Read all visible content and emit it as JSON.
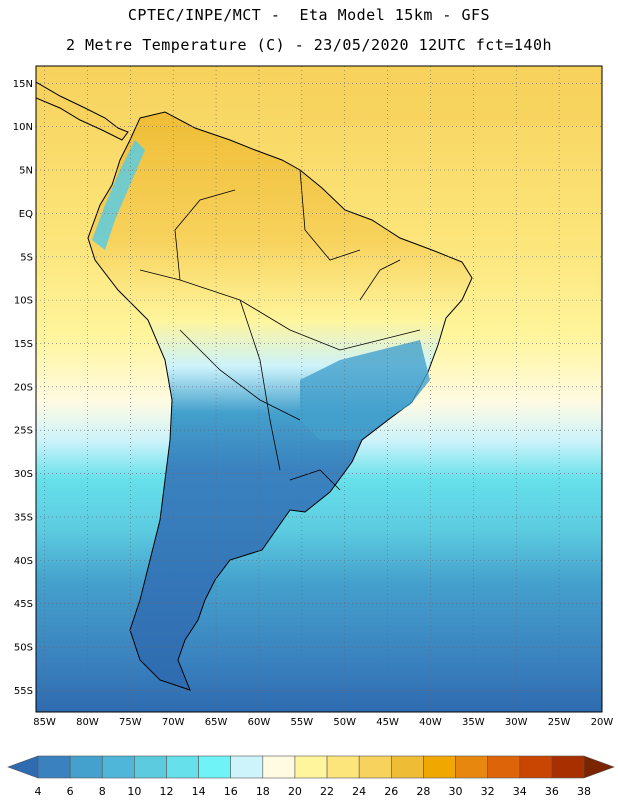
{
  "header": {
    "line1": "CPTEC/INPE/MCT -  Eta Model 15km - GFS",
    "line2": "2 Metre Temperature (C) - 23/05/2020 12UTC fct=140h"
  },
  "map": {
    "lat_labels": [
      "15N",
      "10N",
      "5N",
      "EQ",
      "5S",
      "10S",
      "15S",
      "20S",
      "25S",
      "30S",
      "35S",
      "40S",
      "45S",
      "50S",
      "55S"
    ],
    "lon_labels": [
      "85W",
      "80W",
      "75W",
      "70W",
      "65W",
      "60W",
      "55W",
      "50W",
      "45W",
      "40W",
      "35W",
      "30W",
      "25W",
      "20W"
    ],
    "lat_range": [
      17,
      -57.5
    ],
    "lon_range": [
      -86,
      -20
    ]
  },
  "colorbar": {
    "labels": [
      "4",
      "6",
      "8",
      "10",
      "12",
      "14",
      "16",
      "18",
      "20",
      "22",
      "24",
      "26",
      "28",
      "30",
      "32",
      "34",
      "36",
      "38"
    ],
    "colors": [
      "#2e6bb0",
      "#3a82bf",
      "#44a0cc",
      "#4fb6d9",
      "#5ccbe0",
      "#66e0ea",
      "#6ff3f7",
      "#cdf3fb",
      "#fffbe3",
      "#fff59c",
      "#fce57a",
      "#f7d25c",
      "#efbd35",
      "#f0a800",
      "#e8870e",
      "#dd6408",
      "#c84502",
      "#a82f00",
      "#7a2400"
    ]
  }
}
